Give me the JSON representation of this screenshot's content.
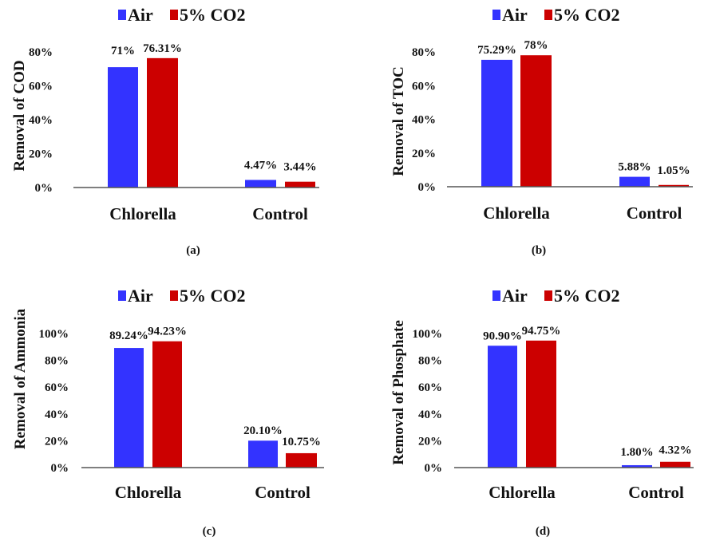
{
  "figure": {
    "description": "Four grouped bar charts comparing removal efficiency under Air vs 5% CO2 aeration for Chlorella and Control"
  },
  "chart_data": [
    {
      "type": "bar",
      "panel_label": "(a)",
      "title": "",
      "xlabel": "",
      "ylabel": "Removal of COD",
      "categories": [
        "Chlorella",
        "Control"
      ],
      "series": [
        {
          "name": "Air",
          "color": "#3333ff",
          "values": [
            71,
            4.47
          ],
          "labels": [
            "71%",
            "4.47%"
          ]
        },
        {
          "name": "5% CO2",
          "color": "#cc0000",
          "values": [
            76.31,
            3.44
          ],
          "labels": [
            "76.31%",
            "3.44%"
          ]
        }
      ],
      "ylim": [
        0,
        80
      ],
      "yticks": [
        "0%",
        "20%",
        "40%",
        "60%",
        "80%"
      ],
      "ytick_values": [
        0,
        20,
        40,
        60,
        80
      ],
      "grid": false,
      "legend": "top-center"
    },
    {
      "type": "bar",
      "panel_label": "(b)",
      "title": "",
      "xlabel": "",
      "ylabel": "Removal of TOC",
      "categories": [
        "Chlorella",
        "Control"
      ],
      "series": [
        {
          "name": "Air",
          "color": "#3333ff",
          "values": [
            75.29,
            5.88
          ],
          "labels": [
            "75.29%",
            "5.88%"
          ]
        },
        {
          "name": "5% CO2",
          "color": "#cc0000",
          "values": [
            78,
            1.05
          ],
          "labels": [
            "78%",
            "1.05%"
          ]
        }
      ],
      "ylim": [
        0,
        80
      ],
      "yticks": [
        "0%",
        "20%",
        "40%",
        "60%",
        "80%"
      ],
      "ytick_values": [
        0,
        20,
        40,
        60,
        80
      ],
      "grid": false,
      "legend": "top-center"
    },
    {
      "type": "bar",
      "panel_label": "(c)",
      "title": "",
      "xlabel": "",
      "ylabel": "Removal of Ammonia",
      "categories": [
        "Chlorella",
        "Control"
      ],
      "series": [
        {
          "name": "Air",
          "color": "#3333ff",
          "values": [
            89.24,
            20.1
          ],
          "labels": [
            "89.24%",
            "20.10%"
          ]
        },
        {
          "name": "5% CO2",
          "color": "#cc0000",
          "values": [
            94.23,
            10.75
          ],
          "labels": [
            "94.23%",
            "10.75%"
          ]
        }
      ],
      "ylim": [
        0,
        100
      ],
      "yticks": [
        "0%",
        "20%",
        "40%",
        "60%",
        "80%",
        "100%"
      ],
      "ytick_values": [
        0,
        20,
        40,
        60,
        80,
        100
      ],
      "grid": false,
      "legend": "top-center"
    },
    {
      "type": "bar",
      "panel_label": "(d)",
      "title": "",
      "xlabel": "",
      "ylabel": "Removal of Phosphate",
      "categories": [
        "Chlorella",
        "Control"
      ],
      "series": [
        {
          "name": "Air",
          "color": "#3333ff",
          "values": [
            90.9,
            1.8
          ],
          "labels": [
            "90.90%",
            "1.80%"
          ]
        },
        {
          "name": "5% CO2",
          "color": "#cc0000",
          "values": [
            94.75,
            4.32
          ],
          "labels": [
            "94.75%",
            "4.32%"
          ]
        }
      ],
      "ylim": [
        0,
        100
      ],
      "yticks": [
        "0%",
        "20%",
        "40%",
        "60%",
        "80%",
        "100%"
      ],
      "ytick_values": [
        0,
        20,
        40,
        60,
        80,
        100
      ],
      "grid": false,
      "legend": "top-center"
    }
  ]
}
